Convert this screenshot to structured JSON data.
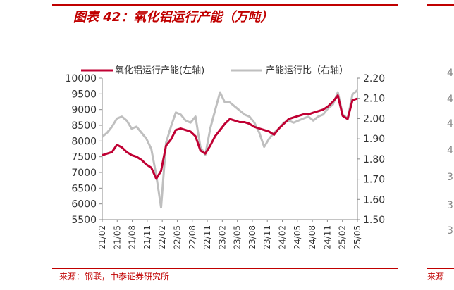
{
  "figure_title": "图表 42：氧化铝运行产能（万吨）",
  "source": "来源：钢联，中泰证券研究所",
  "source_right": "来源",
  "colors": {
    "brand_red": "#c00000",
    "series_red": "#c00033",
    "series_gray": "#bfbfbf"
  },
  "right_panel_ticks": [
    "4",
    "4",
    "4",
    "4",
    "3",
    "3",
    "3"
  ],
  "chart_data": {
    "type": "line",
    "title": "",
    "ylabel_left": "",
    "ylabel_right": "",
    "ylim_left": [
      5500,
      10000
    ],
    "ylim_right": [
      1.5,
      2.2
    ],
    "yticks_left": [
      "10000",
      "9500",
      "9000",
      "8500",
      "8000",
      "7500",
      "7000",
      "6500",
      "6000",
      "5500"
    ],
    "yticks_right": [
      "2.20",
      "2.10",
      "2.00",
      "1.90",
      "1.80",
      "1.70",
      "1.60",
      "1.50"
    ],
    "xticks": [
      "21/02",
      "21/05",
      "21/08",
      "21/11",
      "22/02",
      "22/05",
      "22/08",
      "22/11",
      "23/02",
      "23/05",
      "23/08",
      "23/11",
      "24/02",
      "24/05",
      "24/08",
      "24/11",
      "25/02",
      "25/05"
    ],
    "legend_position": "top",
    "grid": false,
    "x": [
      "2021-02",
      "2021-03",
      "2021-04",
      "2021-05",
      "2021-06",
      "2021-07",
      "2021-08",
      "2021-09",
      "2021-10",
      "2021-11",
      "2021-12",
      "2022-01",
      "2022-02",
      "2022-03",
      "2022-04",
      "2022-05",
      "2022-06",
      "2022-07",
      "2022-08",
      "2022-09",
      "2022-10",
      "2022-11",
      "2022-12",
      "2023-01",
      "2023-02",
      "2023-03",
      "2023-04",
      "2023-05",
      "2023-06",
      "2023-07",
      "2023-08",
      "2023-09",
      "2023-10",
      "2023-11",
      "2023-12",
      "2024-01",
      "2024-02",
      "2024-03",
      "2024-04",
      "2024-05",
      "2024-06",
      "2024-07",
      "2024-08",
      "2024-09",
      "2024-10",
      "2024-11",
      "2024-12",
      "2025-01",
      "2025-02",
      "2025-03",
      "2025-04",
      "2025-05",
      "2025-06"
    ],
    "series": [
      {
        "name": "氧化铝运行产能(左轴)",
        "axis": "left",
        "color": "#c00033",
        "values": [
          7550,
          7600,
          7650,
          7880,
          7800,
          7650,
          7550,
          7500,
          7400,
          7250,
          7150,
          6800,
          7050,
          7850,
          8050,
          8350,
          8400,
          8350,
          8300,
          8150,
          7700,
          7600,
          7850,
          8150,
          8350,
          8550,
          8700,
          8650,
          8600,
          8600,
          8550,
          8450,
          8400,
          8350,
          8300,
          8200,
          8400,
          8550,
          8700,
          8750,
          8800,
          8850,
          8850,
          8900,
          8950,
          9000,
          9100,
          9250,
          9450,
          8800,
          8700,
          9300,
          9350
        ]
      },
      {
        "name": "产能运行比（右轴）",
        "axis": "right",
        "color": "#bfbfbf",
        "values": [
          1.91,
          1.93,
          1.96,
          2.0,
          2.01,
          1.99,
          1.95,
          1.96,
          1.93,
          1.9,
          1.85,
          1.72,
          1.56,
          1.88,
          1.96,
          2.03,
          2.02,
          1.99,
          1.98,
          2.01,
          1.86,
          1.82,
          1.95,
          2.04,
          2.13,
          2.08,
          2.08,
          2.06,
          2.04,
          2.02,
          2.01,
          1.98,
          1.93,
          1.86,
          1.9,
          1.93,
          1.95,
          1.98,
          1.99,
          1.98,
          1.99,
          2.0,
          2.01,
          1.99,
          2.01,
          2.02,
          2.05,
          2.07,
          2.13,
          2.02,
          2.0,
          2.12,
          2.14
        ]
      }
    ]
  }
}
